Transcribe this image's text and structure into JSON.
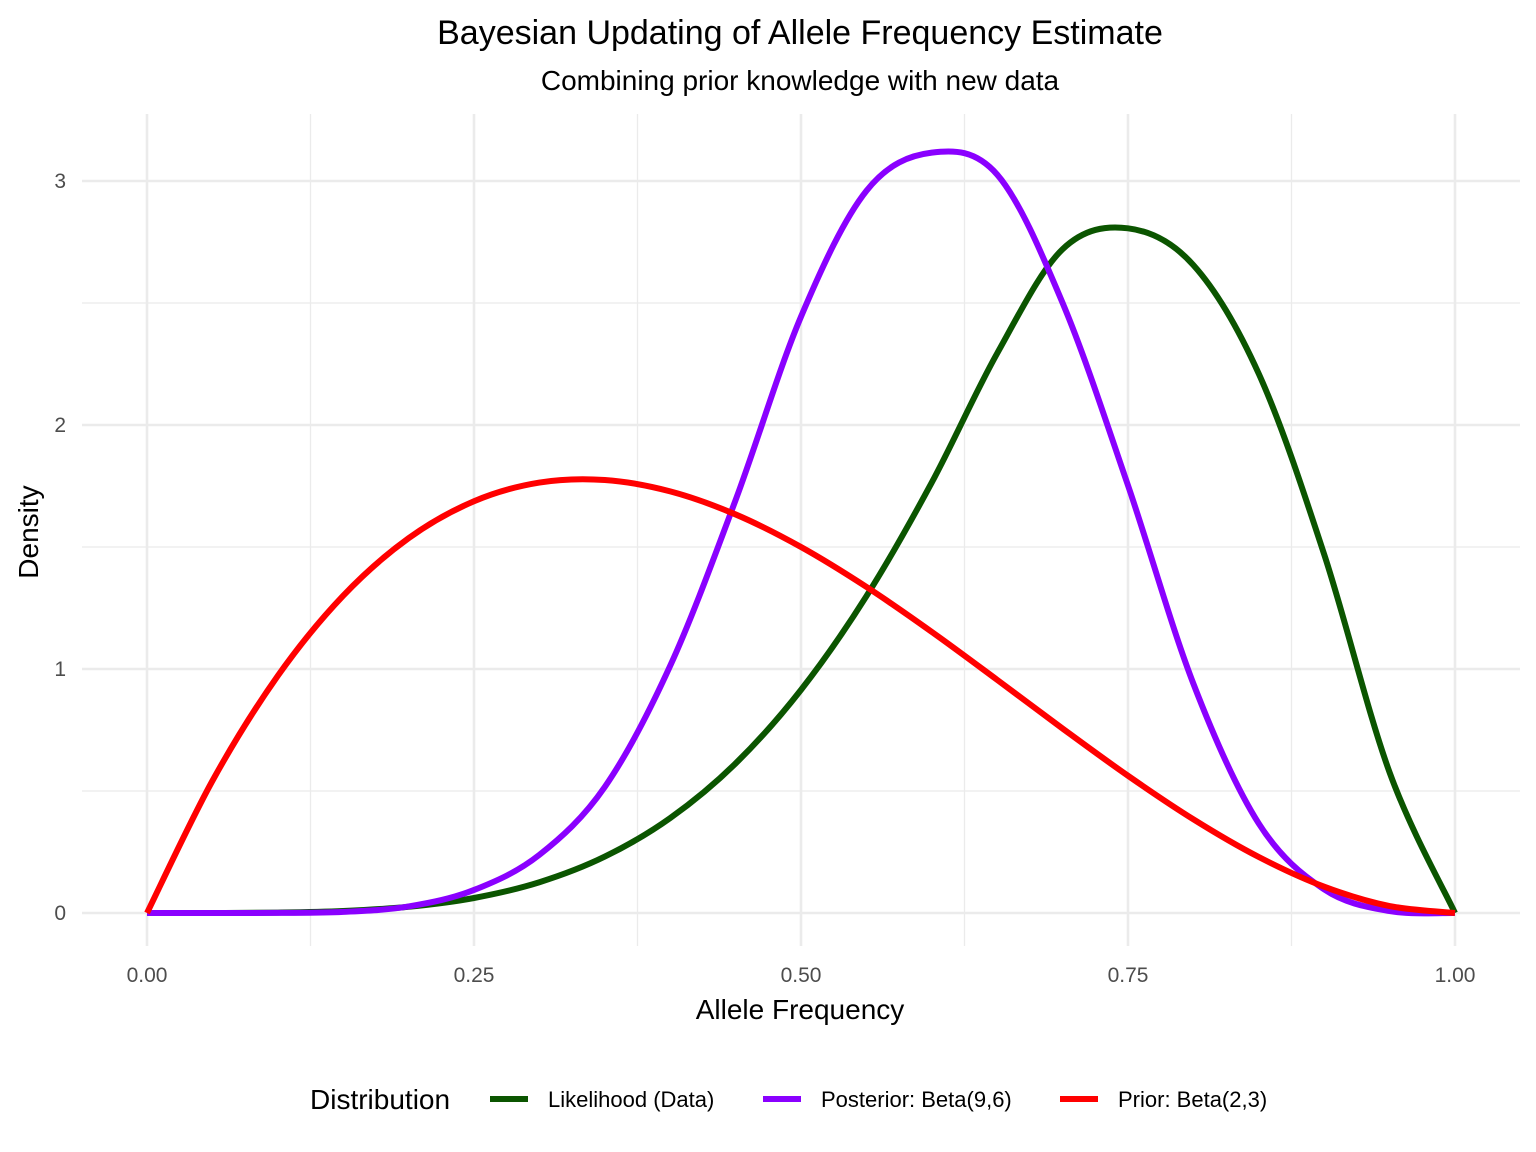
{
  "chart_data": {
    "type": "line",
    "title": "Bayesian Updating of Allele Frequency Estimate",
    "subtitle": "Combining prior knowledge with new data",
    "xlabel": "Allele Frequency",
    "ylabel": "Density",
    "xlim": [
      0,
      1
    ],
    "ylim": [
      0,
      3.1
    ],
    "x_ticks": [
      "0.00",
      "0.25",
      "0.50",
      "0.75",
      "1.00"
    ],
    "y_ticks": [
      "0",
      "1",
      "2",
      "3"
    ],
    "grid": true,
    "legend": {
      "title": "Distribution",
      "position": "bottom"
    },
    "series": [
      {
        "name": "Likelihood (Data)",
        "color": "#0b5500",
        "x": [
          0.0,
          0.05,
          0.1,
          0.15,
          0.2,
          0.25,
          0.3,
          0.35,
          0.4,
          0.45,
          0.5,
          0.55,
          0.6,
          0.65,
          0.7,
          0.75,
          0.8,
          0.85,
          0.9,
          0.95,
          1.0
        ],
        "y": [
          0.0,
          0.0001,
          0.0017,
          0.0083,
          0.0256,
          0.0615,
          0.1261,
          0.2311,
          0.3891,
          0.6129,
          0.9146,
          1.2985,
          1.7645,
          2.2938,
          2.7206,
          2.8061,
          2.6554,
          2.2098,
          1.4695,
          0.5761,
          0.0
        ]
      },
      {
        "name": "Posterior: Beta(9,6)",
        "color": "#8a00ff",
        "x": [
          0.0,
          0.05,
          0.1,
          0.15,
          0.2,
          0.25,
          0.3,
          0.35,
          0.4,
          0.45,
          0.5,
          0.55,
          0.6,
          0.65,
          0.7,
          0.75,
          0.8,
          0.85,
          0.9,
          0.95,
          1.0
        ],
        "y": [
          0.0,
          0.0,
          0.0003,
          0.0045,
          0.0269,
          0.0944,
          0.2384,
          0.5168,
          1.0131,
          1.6923,
          2.4438,
          2.9597,
          3.1162,
          3.0262,
          2.5003,
          1.7522,
          0.9396,
          0.3665,
          0.0968,
          0.0081,
          0.0
        ]
      },
      {
        "name": "Prior: Beta(2,3)",
        "color": "#ff0000",
        "x": [
          0.0,
          0.05,
          0.1,
          0.15,
          0.2,
          0.25,
          0.3,
          0.35,
          0.4,
          0.45,
          0.5,
          0.55,
          0.6,
          0.65,
          0.7,
          0.75,
          0.8,
          0.85,
          0.9,
          0.95,
          1.0
        ],
        "y": [
          0.0,
          0.5415,
          0.972,
          1.3005,
          1.536,
          1.6875,
          1.764,
          1.7745,
          1.728,
          1.6335,
          1.5,
          1.3365,
          1.152,
          0.9555,
          0.756,
          0.5625,
          0.384,
          0.2295,
          0.108,
          0.0285,
          0.0
        ]
      }
    ]
  }
}
